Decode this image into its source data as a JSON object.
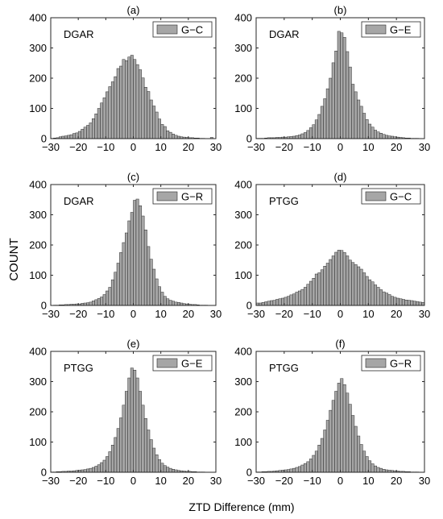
{
  "figure": {
    "ylabel": "COUNT",
    "xlabel": "ZTD Difference (mm)"
  },
  "colors": {
    "bar": "#a6a6a6",
    "bar_edge": "#2b2b2b",
    "axis": "#262626"
  },
  "chart_data": [
    {
      "type": "bar",
      "panel": "(a)",
      "station": "DGAR",
      "legend": "G−C",
      "xlim": [
        -30,
        30
      ],
      "ylim": [
        0,
        400
      ],
      "xticks": [
        -30,
        -20,
        -10,
        0,
        10,
        20,
        30
      ],
      "yticks": [
        0,
        100,
        200,
        300,
        400
      ],
      "bin_width": 1,
      "bin_start": -30,
      "values": [
        1,
        2,
        3,
        6,
        8,
        9,
        11,
        13,
        17,
        19,
        24,
        31,
        38,
        44,
        52,
        66,
        82,
        100,
        118,
        135,
        155,
        172,
        188,
        205,
        232,
        240,
        262,
        258,
        270,
        276,
        262,
        245,
        228,
        201,
        170,
        156,
        128,
        108,
        88,
        65,
        47,
        40,
        26,
        21,
        15,
        11,
        8,
        6,
        5,
        4,
        3,
        3,
        2,
        2,
        1,
        1,
        0,
        0,
        4,
        0
      ]
    },
    {
      "type": "bar",
      "panel": "(b)",
      "station": "DGAR",
      "legend": "G−E",
      "xlim": [
        -30,
        30
      ],
      "ylim": [
        0,
        400
      ],
      "xticks": [
        -30,
        -20,
        -10,
        0,
        10,
        20,
        30
      ],
      "yticks": [
        0,
        100,
        200,
        300,
        400
      ],
      "bin_width": 1,
      "bin_start": -30,
      "values": [
        1,
        1,
        1,
        2,
        3,
        3,
        3,
        4,
        4,
        5,
        5,
        6,
        7,
        8,
        10,
        12,
        16,
        20,
        27,
        36,
        46,
        62,
        80,
        107,
        132,
        165,
        200,
        251,
        290,
        355,
        350,
        335,
        288,
        237,
        180,
        155,
        128,
        107,
        84,
        63,
        48,
        38,
        28,
        22,
        18,
        14,
        11,
        9,
        8,
        6,
        5,
        4,
        3,
        2,
        2,
        1,
        1,
        1,
        0,
        0
      ]
    },
    {
      "type": "bar",
      "panel": "(c)",
      "station": "DGAR",
      "legend": "G−R",
      "xlim": [
        -30,
        30
      ],
      "ylim": [
        0,
        400
      ],
      "xticks": [
        -30,
        -20,
        -10,
        0,
        10,
        20,
        30
      ],
      "yticks": [
        0,
        100,
        200,
        300,
        400
      ],
      "bin_width": 1,
      "bin_start": -30,
      "values": [
        0,
        1,
        1,
        2,
        2,
        3,
        3,
        4,
        4,
        5,
        5,
        7,
        8,
        9,
        11,
        15,
        19,
        23,
        28,
        36,
        48,
        60,
        85,
        110,
        140,
        175,
        208,
        240,
        280,
        308,
        348,
        352,
        330,
        296,
        250,
        195,
        153,
        120,
        88,
        62,
        44,
        30,
        22,
        17,
        14,
        11,
        10,
        8,
        6,
        5,
        4,
        3,
        3,
        2,
        1,
        1,
        1,
        0,
        0,
        0
      ]
    },
    {
      "type": "bar",
      "panel": "(d)",
      "station": "PTGG",
      "legend": "G−C",
      "xlim": [
        -30,
        30
      ],
      "ylim": [
        0,
        400
      ],
      "xticks": [
        -30,
        -20,
        -10,
        0,
        10,
        20,
        30
      ],
      "yticks": [
        0,
        100,
        200,
        300,
        400
      ],
      "bin_width": 1,
      "bin_start": -30,
      "values": [
        8,
        8,
        10,
        12,
        14,
        16,
        17,
        20,
        22,
        24,
        27,
        30,
        35,
        38,
        44,
        48,
        53,
        60,
        70,
        80,
        90,
        104,
        108,
        118,
        130,
        140,
        152,
        164,
        176,
        183,
        182,
        175,
        164,
        150,
        142,
        135,
        128,
        120,
        108,
        96,
        85,
        78,
        68,
        60,
        52,
        45,
        41,
        36,
        30,
        27,
        24,
        22,
        20,
        18,
        17,
        16,
        14,
        13,
        11,
        10
      ]
    },
    {
      "type": "bar",
      "panel": "(e)",
      "station": "PTGG",
      "legend": "G−E",
      "xlim": [
        -30,
        30
      ],
      "ylim": [
        0,
        400
      ],
      "xticks": [
        -30,
        -20,
        -10,
        0,
        10,
        20,
        30
      ],
      "yticks": [
        0,
        100,
        200,
        300,
        400
      ],
      "bin_width": 1,
      "bin_start": -30,
      "values": [
        1,
        1,
        2,
        2,
        3,
        3,
        4,
        4,
        5,
        6,
        7,
        8,
        9,
        11,
        13,
        16,
        20,
        25,
        32,
        40,
        52,
        68,
        90,
        115,
        145,
        180,
        222,
        268,
        312,
        345,
        338,
        312,
        268,
        222,
        178,
        140,
        108,
        80,
        58,
        42,
        30,
        22,
        17,
        13,
        10,
        8,
        6,
        5,
        4,
        3,
        3,
        2,
        2,
        1,
        1,
        1,
        0,
        0,
        0,
        0
      ]
    },
    {
      "type": "bar",
      "panel": "(f)",
      "station": "PTGG",
      "legend": "G−R",
      "xlim": [
        -30,
        30
      ],
      "ylim": [
        0,
        400
      ],
      "xticks": [
        -30,
        -20,
        -10,
        0,
        10,
        20,
        30
      ],
      "yticks": [
        0,
        100,
        200,
        300,
        400
      ],
      "bin_width": 1,
      "bin_start": -30,
      "values": [
        1,
        1,
        2,
        2,
        3,
        3,
        4,
        5,
        6,
        7,
        8,
        9,
        11,
        13,
        16,
        19,
        24,
        29,
        35,
        44,
        56,
        70,
        90,
        112,
        140,
        172,
        205,
        238,
        268,
        295,
        310,
        290,
        262,
        225,
        188,
        152,
        120,
        92,
        70,
        52,
        38,
        28,
        21,
        16,
        13,
        10,
        8,
        7,
        6,
        5,
        4,
        3,
        3,
        2,
        2,
        1,
        1,
        1,
        0,
        0
      ]
    }
  ]
}
